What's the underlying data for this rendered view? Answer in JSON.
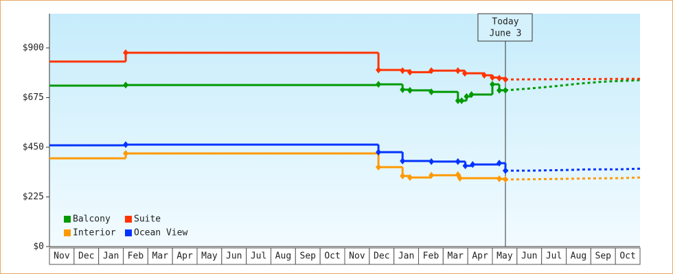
{
  "chart_data": {
    "type": "step-line",
    "xlim": [
      0,
      24
    ],
    "ylim": [
      0,
      1055
    ],
    "yticks": [
      {
        "value": 0,
        "label": "$0"
      },
      {
        "value": 225,
        "label": "$225"
      },
      {
        "value": 450,
        "label": "$450"
      },
      {
        "value": 675,
        "label": "$675"
      },
      {
        "value": 900,
        "label": "$900"
      }
    ],
    "xticks": [
      {
        "value": 0.5,
        "label": "Nov"
      },
      {
        "value": 1.5,
        "label": "Dec"
      },
      {
        "value": 2.5,
        "label": "Jan"
      },
      {
        "value": 3.5,
        "label": "Feb"
      },
      {
        "value": 4.5,
        "label": "Mar"
      },
      {
        "value": 5.5,
        "label": "Apr"
      },
      {
        "value": 6.5,
        "label": "May"
      },
      {
        "value": 7.5,
        "label": "Jun"
      },
      {
        "value": 8.5,
        "label": "Jul"
      },
      {
        "value": 9.5,
        "label": "Aug"
      },
      {
        "value": 10.5,
        "label": "Sep"
      },
      {
        "value": 11.5,
        "label": "Oct"
      },
      {
        "value": 12.5,
        "label": "Nov"
      },
      {
        "value": 13.5,
        "label": "Dec"
      },
      {
        "value": 14.5,
        "label": "Jan"
      },
      {
        "value": 15.5,
        "label": "Feb"
      },
      {
        "value": 16.5,
        "label": "Mar"
      },
      {
        "value": 17.5,
        "label": "Apr"
      },
      {
        "value": 18.5,
        "label": "May"
      },
      {
        "value": 19.5,
        "label": "Jun"
      },
      {
        "value": 20.5,
        "label": "Jul"
      },
      {
        "value": 21.5,
        "label": "Aug"
      },
      {
        "value": 22.5,
        "label": "Sep"
      },
      {
        "value": 23.5,
        "label": "Oct"
      }
    ],
    "annotation": {
      "lines": [
        "Today",
        "June 3"
      ],
      "x": 18.53
    },
    "series": [
      {
        "name": "Balcony",
        "color": "#009900",
        "x": [
          0,
          3.1,
          13.37,
          14.35,
          14.65,
          15.52,
          16.6,
          16.75,
          16.95,
          17.15,
          18.0,
          18.28,
          18.53
        ],
        "values": [
          729,
          732,
          735,
          711,
          708,
          701,
          661,
          661,
          680,
          689,
          735,
          708,
          708
        ],
        "forecast": {
          "x": [
            18.53,
            19.5,
            20.5,
            21.5,
            22.5,
            24
          ],
          "values": [
            708,
            716,
            726,
            738,
            747,
            754
          ]
        }
      },
      {
        "name": "Suite",
        "color": "#ff3300",
        "x": [
          0,
          3.1,
          13.37,
          14.35,
          14.65,
          15.52,
          16.6,
          16.88,
          17.67,
          18.0,
          18.28,
          18.53
        ],
        "values": [
          838,
          878,
          800,
          797,
          790,
          797,
          797,
          785,
          776,
          766,
          763,
          757
        ],
        "forecast": {
          "x": [
            18.53,
            24
          ],
          "values": [
            757,
            760
          ]
        }
      },
      {
        "name": "Interior",
        "color": "#ff9900",
        "x": [
          0,
          3.1,
          13.37,
          14.35,
          14.65,
          15.52,
          16.6,
          16.68,
          18.28,
          18.53
        ],
        "values": [
          400,
          422,
          360,
          320,
          313,
          323,
          326,
          310,
          307,
          304
        ],
        "forecast": {
          "x": [
            18.53,
            19.5,
            21,
            22,
            23.2,
            24
          ],
          "values": [
            304,
            305,
            307,
            309,
            310,
            313
          ]
        }
      },
      {
        "name": "Ocean View",
        "color": "#0033ff",
        "x": [
          0,
          3.1,
          13.37,
          14.35,
          15.52,
          16.6,
          16.9,
          17.2,
          18.28,
          18.53
        ],
        "values": [
          459,
          462,
          428,
          388,
          385,
          385,
          366,
          372,
          378,
          344
        ],
        "forecast": {
          "x": [
            18.53,
            19.5,
            21,
            22,
            23.2,
            24
          ],
          "values": [
            344,
            344,
            347,
            350,
            350,
            353
          ]
        }
      }
    ]
  }
}
